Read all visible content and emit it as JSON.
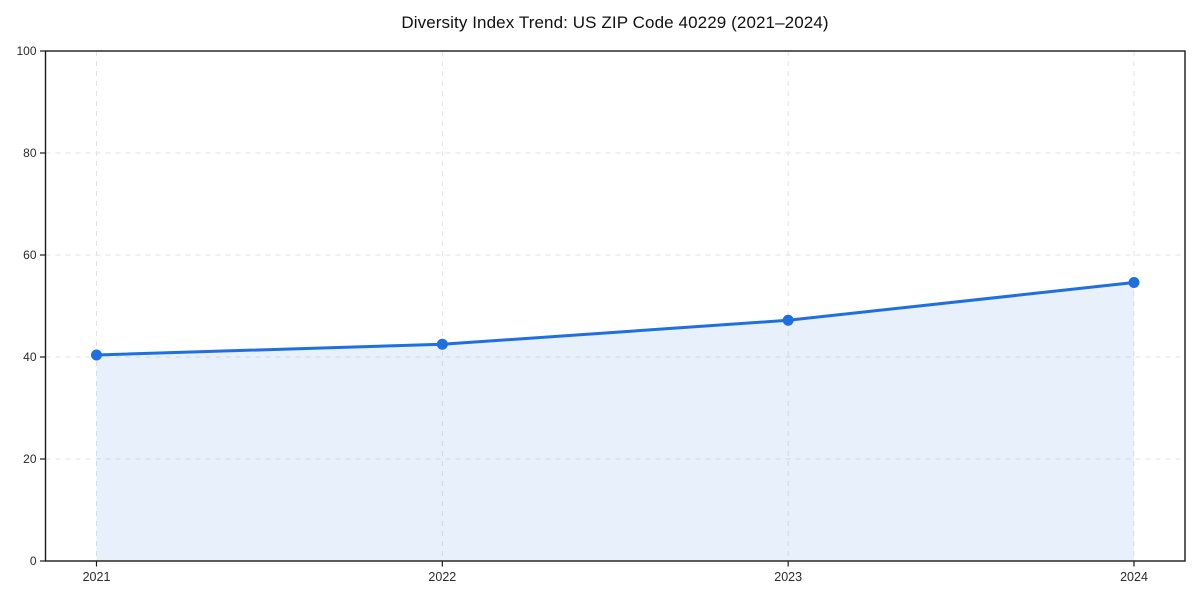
{
  "chart_data": {
    "type": "area",
    "title": "Diversity Index Trend: US ZIP Code 40229 (2021–2024)",
    "categories": [
      "2021",
      "2022",
      "2023",
      "2024"
    ],
    "series": [
      {
        "name": "Diversity Index",
        "values": [
          40.4,
          42.5,
          47.2,
          54.6
        ]
      }
    ],
    "xlabel": "",
    "ylabel": "",
    "ylim": [
      0,
      100
    ],
    "yticks": [
      0,
      20,
      40,
      60,
      80,
      100
    ],
    "grid": "dashed both axes",
    "legend_position": "none",
    "line_color": "#1f6fe0",
    "marker_color": "#1f6fe0",
    "fill_color": "#1f6fe0",
    "fill_opacity": 0.1,
    "gridline_color": "#e3e3e3",
    "axis_color": "#1a1a1a",
    "tick_label_color": "#2b2b2b"
  }
}
